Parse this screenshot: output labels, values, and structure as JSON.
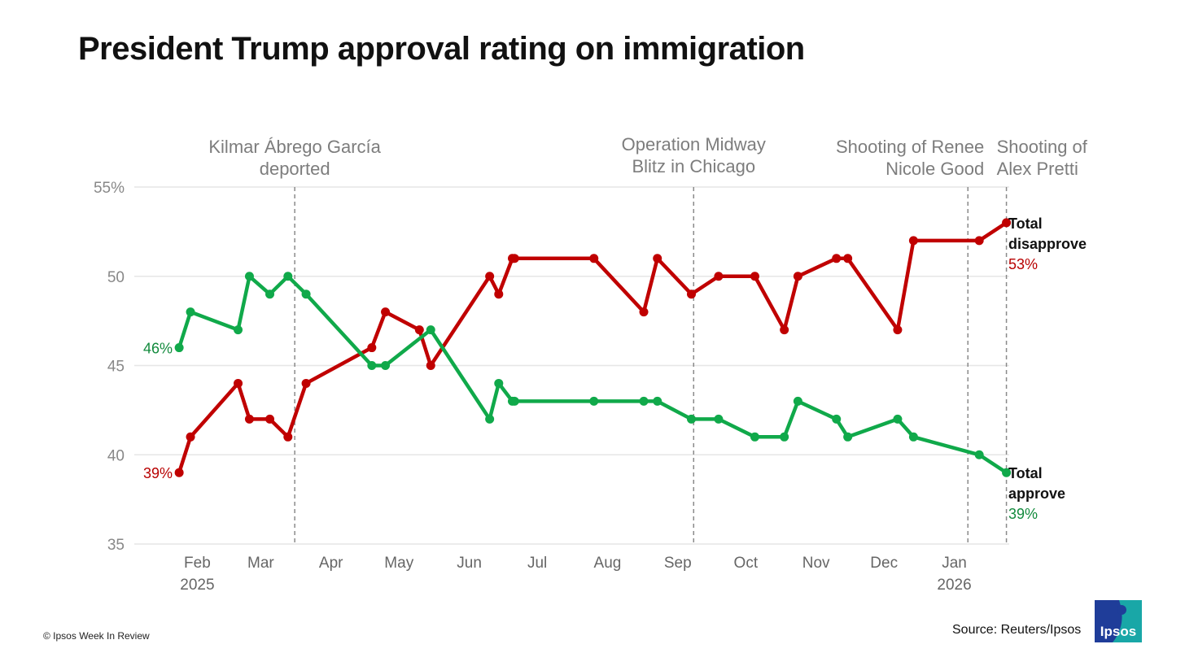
{
  "title": "President Trump approval rating on immigration",
  "footer": {
    "copyright": "© Ipsos Week In Review",
    "source": "Source: Reuters/Ipsos",
    "logo_text": "Ipsos"
  },
  "colors": {
    "approve": "#10a94a",
    "disapprove": "#c00000",
    "approve_label": "#118a3c",
    "disapprove_label": "#b80000",
    "grid": "#e6e6e6",
    "annotation_line": "#8a8a8a",
    "logo_blue": "#1f3d99",
    "logo_teal": "#19a7a7"
  },
  "chart_data": {
    "type": "line",
    "title": "President Trump approval rating on immigration",
    "ylim": [
      35,
      55
    ],
    "y_ticks": [
      35,
      40,
      45,
      50,
      55
    ],
    "y_tick_labels": [
      "35",
      "40",
      "45",
      "50",
      "55%"
    ],
    "xlim": [
      "2025-01-06",
      "2026-02-05"
    ],
    "grid": "horizontal",
    "x_ticks": [
      {
        "date": "2025-02-01",
        "label": "Feb",
        "sublabel": "2025"
      },
      {
        "date": "2025-03-01",
        "label": "Mar",
        "sublabel": ""
      },
      {
        "date": "2025-04-01",
        "label": "Apr",
        "sublabel": ""
      },
      {
        "date": "2025-05-01",
        "label": "May",
        "sublabel": ""
      },
      {
        "date": "2025-06-01",
        "label": "Jun",
        "sublabel": ""
      },
      {
        "date": "2025-07-01",
        "label": "Jul",
        "sublabel": ""
      },
      {
        "date": "2025-08-01",
        "label": "Aug",
        "sublabel": ""
      },
      {
        "date": "2025-09-01",
        "label": "Sep",
        "sublabel": ""
      },
      {
        "date": "2025-10-01",
        "label": "Oct",
        "sublabel": ""
      },
      {
        "date": "2025-11-01",
        "label": "Nov",
        "sublabel": ""
      },
      {
        "date": "2025-12-01",
        "label": "Dec",
        "sublabel": ""
      },
      {
        "date": "2026-01-01",
        "label": "Jan",
        "sublabel": "2026"
      }
    ],
    "series": [
      {
        "name": "Total disapprove",
        "end_label": "53%",
        "start_label": "39%",
        "color": "#c00000",
        "points": [
          [
            "2025-01-24",
            39
          ],
          [
            "2025-01-29",
            41
          ],
          [
            "2025-02-19",
            44
          ],
          [
            "2025-02-24",
            42
          ],
          [
            "2025-03-05",
            42
          ],
          [
            "2025-03-13",
            41
          ],
          [
            "2025-03-21",
            44
          ],
          [
            "2025-04-19",
            46
          ],
          [
            "2025-04-25",
            48
          ],
          [
            "2025-05-10",
            47
          ],
          [
            "2025-05-15",
            45
          ],
          [
            "2025-06-10",
            50
          ],
          [
            "2025-06-14",
            49
          ],
          [
            "2025-06-20",
            51
          ],
          [
            "2025-06-21",
            51
          ],
          [
            "2025-07-26",
            51
          ],
          [
            "2025-08-17",
            48
          ],
          [
            "2025-08-23",
            51
          ],
          [
            "2025-09-07",
            49
          ],
          [
            "2025-09-19",
            50
          ],
          [
            "2025-10-05",
            50
          ],
          [
            "2025-10-18",
            47
          ],
          [
            "2025-10-24",
            50
          ],
          [
            "2025-11-10",
            51
          ],
          [
            "2025-11-15",
            51
          ],
          [
            "2025-12-07",
            47
          ],
          [
            "2025-12-14",
            52
          ],
          [
            "2026-01-12",
            52
          ],
          [
            "2026-01-24",
            53
          ]
        ]
      },
      {
        "name": "Total approve",
        "end_label": "39%",
        "start_label": "46%",
        "color": "#10a94a",
        "points": [
          [
            "2025-01-24",
            46
          ],
          [
            "2025-01-29",
            48
          ],
          [
            "2025-02-19",
            47
          ],
          [
            "2025-02-24",
            50
          ],
          [
            "2025-03-05",
            49
          ],
          [
            "2025-03-13",
            50
          ],
          [
            "2025-03-21",
            49
          ],
          [
            "2025-04-19",
            45
          ],
          [
            "2025-04-25",
            45
          ],
          [
            "2025-05-15",
            47
          ],
          [
            "2025-06-10",
            42
          ],
          [
            "2025-06-14",
            44
          ],
          [
            "2025-06-20",
            43
          ],
          [
            "2025-06-21",
            43
          ],
          [
            "2025-07-26",
            43
          ],
          [
            "2025-08-17",
            43
          ],
          [
            "2025-08-23",
            43
          ],
          [
            "2025-09-07",
            42
          ],
          [
            "2025-09-19",
            42
          ],
          [
            "2025-10-05",
            41
          ],
          [
            "2025-10-18",
            41
          ],
          [
            "2025-10-24",
            43
          ],
          [
            "2025-11-10",
            42
          ],
          [
            "2025-11-15",
            41
          ],
          [
            "2025-12-07",
            42
          ],
          [
            "2025-12-14",
            41
          ],
          [
            "2026-01-12",
            40
          ],
          [
            "2026-01-24",
            39
          ]
        ]
      }
    ],
    "annotations": [
      {
        "date": "2025-03-16",
        "lines": [
          "Kilmar Ábrego García",
          "deported"
        ],
        "align": "middle"
      },
      {
        "date": "2025-09-08",
        "lines": [
          "Operation Midway",
          "Blitz in Chicago"
        ],
        "align": "middle"
      },
      {
        "date": "2026-01-07",
        "lines": [
          "Shooting of Renee",
          "Nicole Good"
        ],
        "align": "end"
      },
      {
        "date": "2026-01-24",
        "lines": [
          "Shooting of",
          "Alex Pretti"
        ],
        "align": "start"
      }
    ]
  }
}
